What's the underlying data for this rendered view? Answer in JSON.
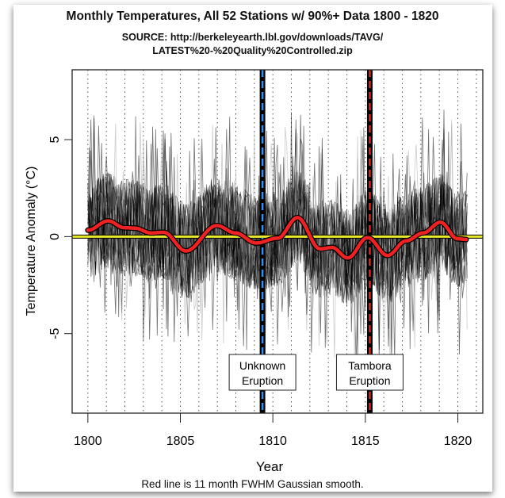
{
  "chart_data": {
    "type": "line",
    "title": "Monthly Temperatures, All 52 Stations w/ 90%+ Data 1800 - 1820",
    "subtitle_line1": "SOURCE: http://berkeleyearth.lbl.gov/downloads/TAVG/",
    "subtitle_line2": "LATEST%20-%20Quality%20Controlled.zip",
    "xlabel": "Year",
    "ylabel": "Temperature Anomaly (°C)",
    "caption": "Red line is 11 month FWHM Gaussian smooth.",
    "xlim": [
      1799.15,
      1821.35
    ],
    "ylim": [
      -9.1,
      8.6
    ],
    "x_ticks": [
      "1800",
      "1805",
      "1810",
      "1815",
      "1820"
    ],
    "y_ticks": [
      "-5",
      "0",
      "5"
    ],
    "grid": "dotted vertical lines at each year",
    "station_count": 52,
    "zero_line": {
      "value": 0,
      "color": "#e8e82a"
    },
    "smooth_series": {
      "color": "#ee2222",
      "x": [
        1800.0,
        1801.1,
        1801.96,
        1802.53,
        1803.4,
        1804.1,
        1805.3,
        1806.97,
        1807.97,
        1809.1,
        1810.26,
        1811.33,
        1812.55,
        1813.2,
        1814.05,
        1815.12,
        1816.2,
        1817.2,
        1818.13,
        1819.06,
        1819.99,
        1820.47
      ],
      "y": [
        0.33,
        0.81,
        0.46,
        0.44,
        0.19,
        0.22,
        -0.74,
        0.57,
        0.19,
        -0.33,
        -0.08,
        0.98,
        -0.63,
        -0.56,
        -1.1,
        -0.05,
        -0.97,
        -0.22,
        0.19,
        0.74,
        -0.11,
        -0.15
      ]
    },
    "events": [
      {
        "year": 1809.44,
        "label_line1": "Unknown",
        "label_line2": "Eruption",
        "color": "#3a8ee6"
      },
      {
        "year": 1815.24,
        "label_line1": "Tambora",
        "label_line2": "Eruption",
        "color": "#e62222"
      }
    ]
  }
}
